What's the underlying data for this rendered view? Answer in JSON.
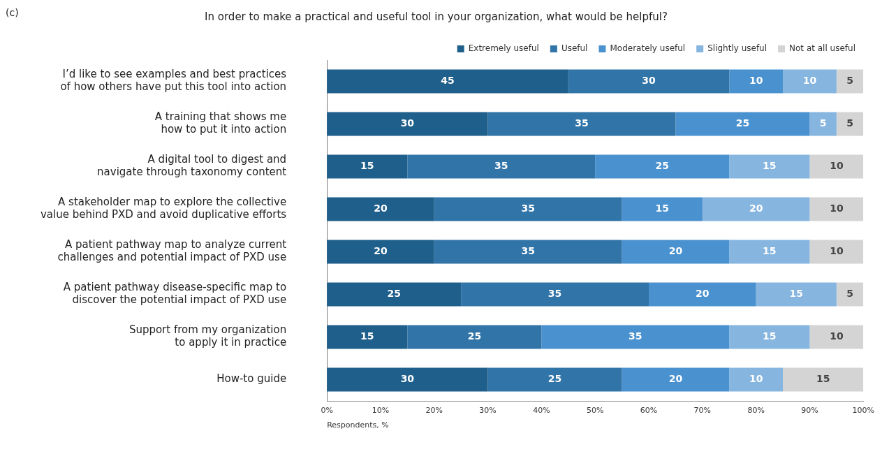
{
  "chart_data": {
    "type": "bar",
    "orientation": "horizontal",
    "stacked": true,
    "title": "In order to make a practical and useful tool in your organization, what would be helpful?",
    "xlabel": "Respondents, %",
    "annotations": [
      "(c)"
    ],
    "categories": [
      "I’d like to see examples and best practices of how others have put this tool into action",
      "A training that shows me how to put it into action",
      "A digital tool to digest and navigate through taxonomy content",
      "A stakeholder map to explore the collective value behind PXD and avoid duplicative efforts",
      "A patient pathway map to analyze current challenges and potential impact of PXD use",
      "A patient pathway disease-specific map to discover the potential impact of PXD use",
      "Support from my organization to apply it in practice",
      "How-to guide"
    ],
    "series": [
      {
        "name": "Extremely useful",
        "color": "#1f5f8b",
        "values": [
          45,
          30,
          15,
          20,
          20,
          25,
          15,
          30
        ]
      },
      {
        "name": "Useful",
        "color": "#3174a8",
        "values": [
          30,
          35,
          35,
          35,
          35,
          35,
          25,
          25
        ]
      },
      {
        "name": "Moderately useful",
        "color": "#4a91cf",
        "values": [
          10,
          25,
          25,
          15,
          20,
          20,
          35,
          20
        ]
      },
      {
        "name": "Slightly useful",
        "color": "#86b5df",
        "values": [
          10,
          5,
          15,
          20,
          15,
          15,
          15,
          10
        ]
      },
      {
        "name": "Not at all useful",
        "color": "#d4d4d4",
        "values": [
          5,
          5,
          10,
          10,
          10,
          5,
          10,
          15
        ]
      }
    ],
    "xlim": [
      0,
      100
    ],
    "xticks": [
      {
        "value": 0,
        "label": "0%"
      },
      {
        "value": 10,
        "label": "10%"
      },
      {
        "value": 20,
        "label": "20%"
      },
      {
        "value": 30,
        "label": "30%"
      },
      {
        "value": 40,
        "label": "40%"
      },
      {
        "value": 50,
        "label": "50%"
      },
      {
        "value": 60,
        "label": "60%"
      },
      {
        "value": 70,
        "label": "70%"
      },
      {
        "value": 80,
        "label": "80%"
      },
      {
        "value": 90,
        "label": "90%"
      },
      {
        "value": 100,
        "label": "100%"
      }
    ],
    "grid": false,
    "legend": "top right",
    "data_labels": true
  }
}
